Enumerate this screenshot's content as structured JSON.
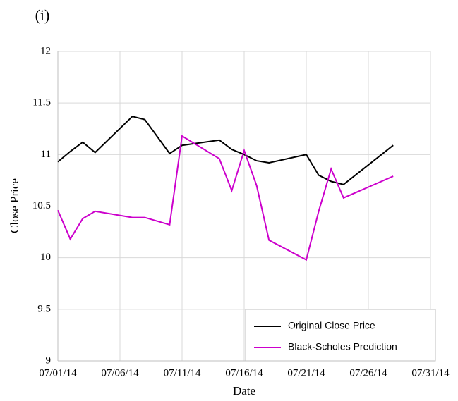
{
  "chart_data": {
    "type": "line",
    "panel_label": "(i)",
    "xlabel": "Date",
    "ylabel": "Close Price",
    "x": [
      "07/01/14",
      "07/02/14",
      "07/03/14",
      "07/04/14",
      "07/07/14",
      "07/08/14",
      "07/10/14",
      "07/11/14",
      "07/14/14",
      "07/15/14",
      "07/16/14",
      "07/17/14",
      "07/18/14",
      "07/21/14",
      "07/22/14",
      "07/23/14",
      "07/24/14",
      "07/28/14"
    ],
    "series": [
      {
        "name": "Original Close Price",
        "color": "#000000",
        "values": [
          10.93,
          11.03,
          11.12,
          11.02,
          11.37,
          11.34,
          11.01,
          11.09,
          11.14,
          11.05,
          11.0,
          10.94,
          10.92,
          11.0,
          10.8,
          10.74,
          10.71,
          11.09
        ]
      },
      {
        "name": "Black-Scholes Prediction",
        "color": "#cc00cc",
        "values": [
          10.46,
          10.18,
          10.38,
          10.45,
          10.39,
          10.39,
          10.32,
          11.18,
          10.96,
          10.65,
          11.04,
          10.7,
          10.17,
          9.98,
          10.45,
          10.86,
          10.58,
          10.79
        ]
      }
    ],
    "xlim": [
      "07/01/14",
      "07/31/14"
    ],
    "xticks": [
      "07/01/14",
      "07/06/14",
      "07/11/14",
      "07/16/14",
      "07/21/14",
      "07/26/14",
      "07/31/14"
    ],
    "ylim": [
      9,
      12
    ],
    "yticks": [
      9,
      9.5,
      10,
      10.5,
      11,
      11.5,
      12
    ],
    "grid": true,
    "legend": "lower right"
  }
}
